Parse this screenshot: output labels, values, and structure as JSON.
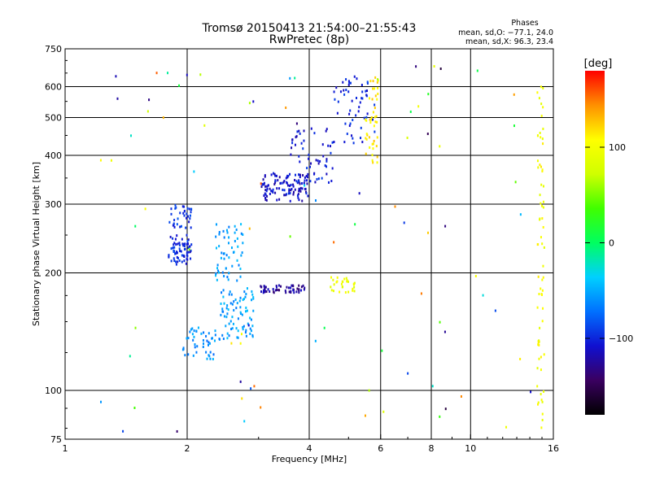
{
  "chart_data": {
    "type": "scatter",
    "title": "Tromsø 20150413 21:54:00–21:55:43",
    "subtitle": "RwPretec (8p)",
    "xlabel": "Frequency [MHz]",
    "ylabel": "Stationary phase Virtual Height [km]",
    "x_scale": "log",
    "y_scale": "log",
    "xlim": [
      1,
      16
    ],
    "ylim": [
      75,
      750
    ],
    "x_ticks": [
      1,
      2,
      4,
      6,
      8,
      10,
      16
    ],
    "x_tick_labels": [
      "1",
      "2",
      "4",
      "6",
      "8",
      "10",
      "16"
    ],
    "y_ticks": [
      75,
      100,
      200,
      300,
      400,
      500,
      600,
      750
    ],
    "y_tick_labels": [
      "75",
      "100",
      "200",
      "300",
      "400",
      "500",
      "600",
      "750"
    ],
    "x_gridlines": [
      2,
      4,
      6,
      8,
      10
    ],
    "y_gridlines": [
      100,
      200,
      300,
      400,
      500,
      600
    ],
    "grid": true,
    "phase_info": {
      "title": "Phases",
      "line_o": "mean, sd,O: −77.1, 24.0",
      "line_x": "mean, sd,X:  96.3, 23.4"
    },
    "colorbar": {
      "label": "[deg]",
      "range": [
        -180,
        180
      ],
      "ticks": [
        100,
        0,
        -100
      ],
      "tick_labels": [
        "100",
        "0",
        "−100"
      ]
    },
    "clusters": [
      {
        "name": "F1 blue lower-left",
        "x_range": [
          1.8,
          2.05
        ],
        "y_range": [
          210,
          250
        ],
        "phase": -100,
        "count": 70
      },
      {
        "name": "F1 blue upper",
        "x_range": [
          1.8,
          2.05
        ],
        "y_range": [
          260,
          300
        ],
        "phase": -95,
        "count": 35
      },
      {
        "name": "F1 cyan mid",
        "x_range": [
          2.35,
          2.75
        ],
        "y_range": [
          190,
          270
        ],
        "phase": -55,
        "count": 55
      },
      {
        "name": "E cyan low",
        "x_range": [
          1.95,
          2.35
        ],
        "y_range": [
          120,
          145
        ],
        "phase": -60,
        "count": 45
      },
      {
        "name": "E cyan rising",
        "x_range": [
          2.4,
          2.95
        ],
        "y_range": [
          135,
          185
        ],
        "phase": -55,
        "count": 80
      },
      {
        "name": "F2 blue",
        "x_range": [
          3.05,
          4.0
        ],
        "y_range": [
          305,
          360
        ],
        "phase": -110,
        "count": 110
      },
      {
        "name": "F2 blue upper",
        "x_range": [
          3.6,
          4.6
        ],
        "y_range": [
          340,
          470
        ],
        "phase": -105,
        "count": 55
      },
      {
        "name": "F2 blue high",
        "x_range": [
          4.6,
          5.8
        ],
        "y_range": [
          430,
          640
        ],
        "phase": -100,
        "count": 55
      },
      {
        "name": "F1 dark blue band",
        "x_range": [
          3.0,
          3.9
        ],
        "y_range": [
          178,
          186
        ],
        "phase": -125,
        "count": 55
      },
      {
        "name": "yellow band",
        "x_range": [
          4.5,
          5.2
        ],
        "y_range": [
          178,
          195
        ],
        "phase": 95,
        "count": 30
      },
      {
        "name": "orange column",
        "x_range": [
          5.5,
          5.95
        ],
        "y_range": [
          380,
          640
        ],
        "phase": 115,
        "count": 45
      },
      {
        "name": "yellow column right",
        "x_range": [
          14.6,
          15.2
        ],
        "y_range": [
          78,
          610
        ],
        "phase": 100,
        "count": 70
      },
      {
        "name": "scattered",
        "x_range": [
          1.2,
          14.5
        ],
        "y_range": [
          78,
          700
        ],
        "phase": 0,
        "count": 90
      }
    ]
  }
}
